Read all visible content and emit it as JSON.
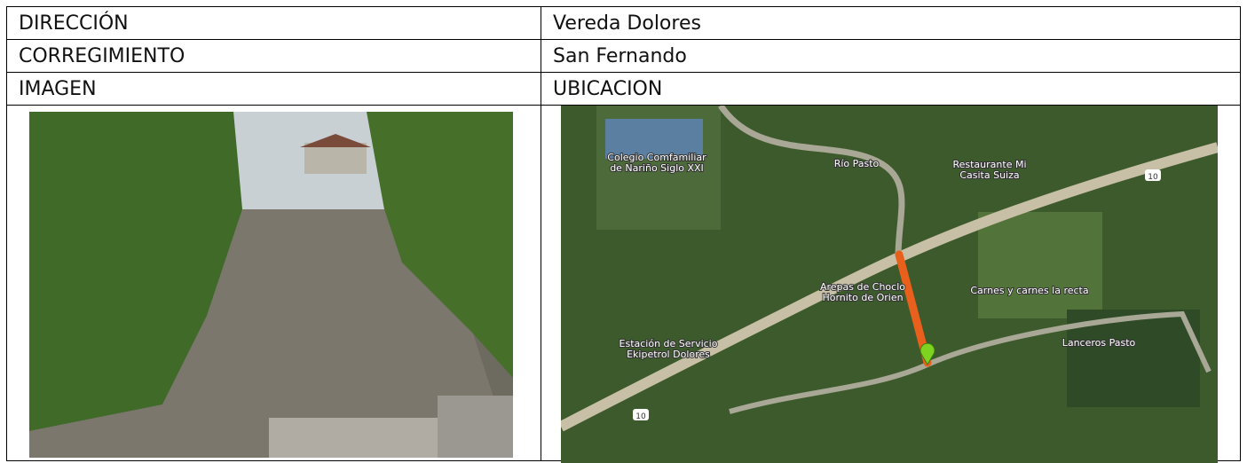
{
  "table": {
    "rows": [
      [
        "DIRECCIÓN",
        "Vereda Dolores"
      ],
      [
        "CORREGIMIENTO",
        "San Fernando"
      ],
      [
        "IMAGEN",
        "UBICACION"
      ]
    ]
  },
  "map": {
    "labels": [
      {
        "lines": [
          "Colegio Comfamiliar",
          "de Nariño Siglo XXI"
        ]
      },
      {
        "lines": [
          "Río Pasto"
        ]
      },
      {
        "lines": [
          "Restaurante Mi",
          "Casita Suiza"
        ]
      },
      {
        "lines": [
          "Arepas de Choclo",
          "Hornito de Orien"
        ]
      },
      {
        "lines": [
          "Carnes y carnes la recta"
        ]
      },
      {
        "lines": [
          "Estación de Servicio",
          "Ekipetrol Dolores"
        ]
      },
      {
        "lines": [
          "Lanceros Pasto"
        ]
      }
    ],
    "road_signs": [
      "10",
      "10"
    ]
  }
}
